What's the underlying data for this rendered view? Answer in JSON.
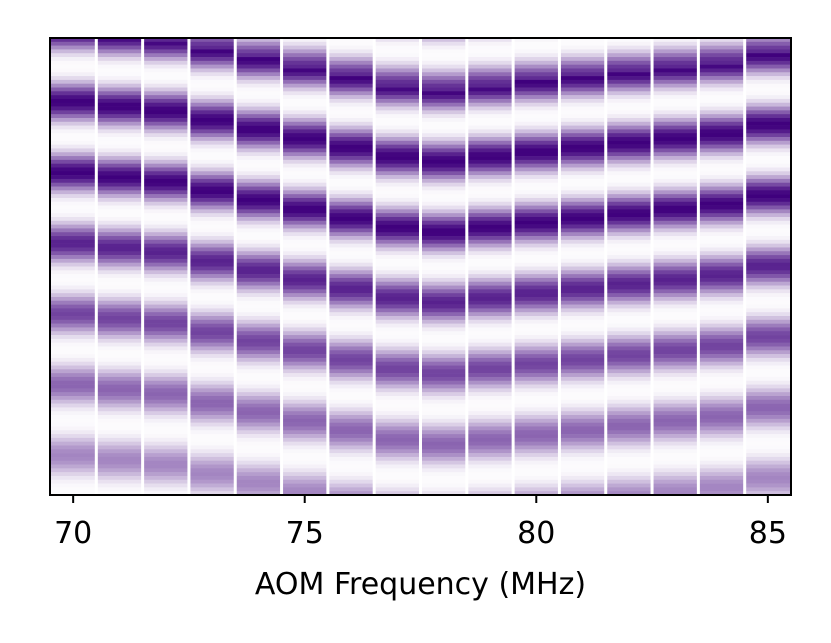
{
  "chart_data": {
    "type": "heatmap",
    "title": "",
    "xlabel": "AOM Frequency (MHz)",
    "ylabel": "",
    "xlim": [
      69.5,
      85.5
    ],
    "x_ticks": [
      70,
      75,
      80,
      85
    ],
    "x_tick_labels": [
      "70",
      "75",
      "80",
      "85"
    ],
    "y_ticks_shown": false,
    "columns_x": [
      70,
      71,
      72,
      73,
      74,
      75,
      76,
      77,
      78,
      79,
      80,
      81,
      82,
      83,
      84,
      85
    ],
    "column_separator_color": "#ffffff",
    "colormap": "Purples",
    "colormap_low": "#fcfbfd",
    "colormap_high": "#3f007d",
    "fringes": {
      "description_note": "",
      "first_dark_fringe_row_fraction_by_column": [
        0.14,
        0.15,
        0.16,
        0.18,
        0.2,
        0.22,
        0.24,
        0.26,
        0.27,
        0.26,
        0.25,
        0.24,
        0.23,
        0.22,
        0.21,
        0.19
      ],
      "fringe_period_row_fraction": 0.155,
      "intensity_decay_downward": 0.6
    }
  }
}
